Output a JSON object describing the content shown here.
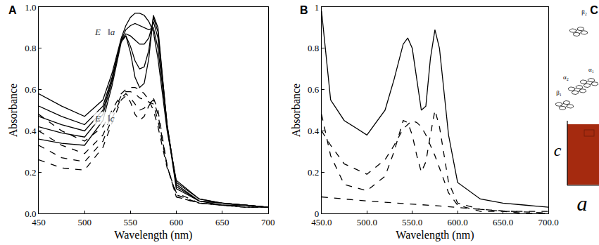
{
  "chart_data": [
    {
      "type": "line",
      "panel": "A",
      "x_label": "Wavelength (nm)",
      "y_label": "Absorbance",
      "x": [
        450,
        475,
        500,
        520,
        530,
        540,
        545,
        550,
        555,
        560,
        565,
        570,
        575,
        580,
        590,
        600,
        625,
        650,
        675,
        700
      ],
      "series": [
        {
          "color": "#000000",
          "line_style": "solid",
          "values": [
            0.58,
            0.52,
            0.47,
            0.55,
            0.68,
            0.85,
            0.91,
            0.95,
            0.97,
            0.97,
            0.96,
            0.93,
            0.88,
            0.75,
            0.4,
            0.16,
            0.07,
            0.05,
            0.04,
            0.03
          ]
        },
        {
          "color": "#000000",
          "line_style": "solid",
          "values": [
            0.52,
            0.47,
            0.43,
            0.52,
            0.66,
            0.84,
            0.89,
            0.91,
            0.92,
            0.91,
            0.9,
            0.89,
            0.9,
            0.8,
            0.42,
            0.15,
            0.07,
            0.05,
            0.04,
            0.03
          ]
        },
        {
          "color": "#000000",
          "line_style": "solid",
          "values": [
            0.47,
            0.43,
            0.4,
            0.5,
            0.65,
            0.84,
            0.87,
            0.86,
            0.84,
            0.82,
            0.82,
            0.85,
            0.93,
            0.85,
            0.43,
            0.14,
            0.06,
            0.05,
            0.04,
            0.03
          ]
        },
        {
          "color": "#000000",
          "line_style": "solid",
          "values": [
            0.42,
            0.39,
            0.37,
            0.48,
            0.64,
            0.84,
            0.86,
            0.81,
            0.74,
            0.7,
            0.71,
            0.79,
            0.95,
            0.88,
            0.43,
            0.13,
            0.06,
            0.05,
            0.04,
            0.03
          ]
        },
        {
          "color": "#000000",
          "line_style": "solid",
          "values": [
            0.36,
            0.34,
            0.33,
            0.45,
            0.62,
            0.83,
            0.86,
            0.78,
            0.66,
            0.61,
            0.63,
            0.75,
            0.96,
            0.9,
            0.42,
            0.12,
            0.06,
            0.04,
            0.04,
            0.03
          ]
        },
        {
          "color": "#000000",
          "line_style": "dashed",
          "values": [
            0.48,
            0.4,
            0.35,
            0.42,
            0.5,
            0.58,
            0.6,
            0.61,
            0.61,
            0.6,
            0.58,
            0.55,
            0.5,
            0.42,
            0.22,
            0.1,
            0.05,
            0.04,
            0.03,
            0.03
          ]
        },
        {
          "color": "#000000",
          "line_style": "dashed",
          "values": [
            0.4,
            0.33,
            0.29,
            0.38,
            0.48,
            0.57,
            0.59,
            0.59,
            0.58,
            0.56,
            0.55,
            0.54,
            0.53,
            0.45,
            0.23,
            0.09,
            0.05,
            0.04,
            0.03,
            0.03
          ]
        },
        {
          "color": "#000000",
          "line_style": "dashed",
          "values": [
            0.33,
            0.27,
            0.25,
            0.35,
            0.46,
            0.56,
            0.58,
            0.56,
            0.53,
            0.5,
            0.51,
            0.53,
            0.55,
            0.48,
            0.23,
            0.08,
            0.05,
            0.04,
            0.03,
            0.03
          ]
        },
        {
          "color": "#000000",
          "line_style": "dashed",
          "values": [
            0.26,
            0.22,
            0.21,
            0.32,
            0.44,
            0.55,
            0.57,
            0.54,
            0.48,
            0.45,
            0.47,
            0.52,
            0.56,
            0.5,
            0.23,
            0.08,
            0.05,
            0.04,
            0.03,
            0.03
          ]
        }
      ],
      "annotations": [
        {
          "text": "E⃗‖a",
          "x": 522,
          "y": 0.88
        },
        {
          "text": "E⃗‖c",
          "x": 522,
          "y": 0.46
        }
      ],
      "xlim": [
        450,
        700
      ],
      "xticks": [
        450,
        500,
        550,
        600,
        650,
        700
      ],
      "ylim": [
        0,
        1
      ],
      "yticks": [
        {
          "value": 0,
          "label": "0.0"
        },
        0.2,
        0.4,
        0.6,
        0.8,
        {
          "value": 1,
          "label": "1.0"
        }
      ],
      "grid": false
    },
    {
      "type": "line",
      "panel": "B",
      "x_label": "Wavelength (nm)",
      "y_label": "Absorbance",
      "x": [
        450,
        460,
        475,
        500,
        520,
        530,
        540,
        545,
        550,
        555,
        560,
        565,
        570,
        575,
        580,
        590,
        600,
        625,
        650,
        675,
        700
      ],
      "series": [
        {
          "color": "#000000",
          "line_style": "solid",
          "values": [
            0.98,
            0.55,
            0.45,
            0.38,
            0.5,
            0.65,
            0.82,
            0.85,
            0.8,
            0.65,
            0.5,
            0.52,
            0.75,
            0.89,
            0.8,
            0.38,
            0.15,
            0.07,
            0.05,
            0.04,
            0.03
          ]
        },
        {
          "color": "#000000",
          "line_style": "dashed",
          "values": [
            0.48,
            0.28,
            0.14,
            0.11,
            0.18,
            0.3,
            0.45,
            0.44,
            0.38,
            0.28,
            0.2,
            0.25,
            0.38,
            0.5,
            0.42,
            0.15,
            0.05,
            0.02,
            0.01,
            0.01,
            0.01
          ]
        },
        {
          "color": "#000000",
          "line_style": "dashed",
          "values": [
            0.4,
            0.33,
            0.24,
            0.19,
            0.26,
            0.33,
            0.41,
            0.43,
            0.45,
            0.44,
            0.42,
            0.38,
            0.33,
            0.28,
            0.22,
            0.1,
            0.04,
            0.01,
            0.01,
            0.0,
            0.0
          ]
        },
        {
          "color": "#000000",
          "line_style": "dashed",
          "values": [
            0.08,
            0.075,
            0.07,
            0.06,
            0.055,
            0.05,
            0.048,
            0.046,
            0.045,
            0.044,
            0.043,
            0.042,
            0.04,
            0.038,
            0.036,
            0.033,
            0.03,
            0.02,
            0.012,
            0.006,
            0.002
          ]
        }
      ],
      "xlim": [
        450,
        700
      ],
      "xticks": [
        {
          "value": 450,
          "label": "450.0"
        },
        {
          "value": 500,
          "label": "500.0"
        },
        {
          "value": 550,
          "label": "550.0"
        },
        {
          "value": 600,
          "label": "600.0"
        },
        {
          "value": 650,
          "label": "650.0"
        },
        {
          "value": 700,
          "label": "700.0"
        }
      ],
      "ylim": [
        0,
        1
      ],
      "yticks": [
        0,
        0.2,
        0.4,
        0.6,
        0.8,
        1
      ],
      "grid": false
    }
  ],
  "diagram": {
    "panel": "C",
    "molecules": [
      "β₂",
      "α₁",
      "α₂",
      "β₁"
    ],
    "axes": {
      "vertical": "c",
      "horizontal": "a"
    }
  }
}
